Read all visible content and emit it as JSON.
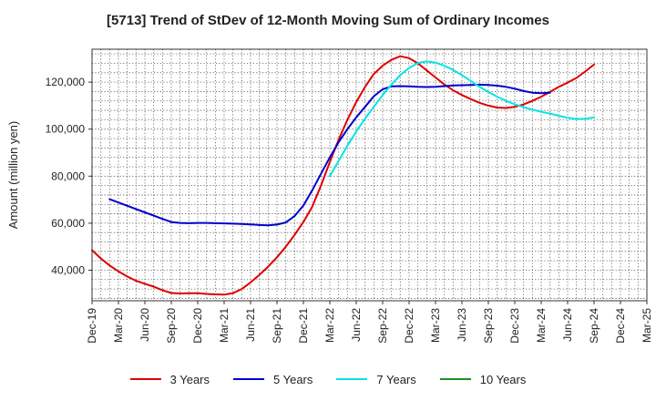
{
  "chart_data": {
    "type": "line",
    "title": "[5713]  Trend of StDev of 12-Month Moving Sum of Ordinary Incomes",
    "xlabel": "",
    "ylabel": "Amount (million yen)",
    "ylim": [
      27000,
      134000
    ],
    "y_ticks": [
      40000,
      60000,
      80000,
      100000,
      120000
    ],
    "y_tick_labels": [
      "40,000",
      "60,000",
      "80,000",
      "100,000",
      "120,000"
    ],
    "x_tick_labels": [
      "Dec-19",
      "Mar-20",
      "Jun-20",
      "Sep-20",
      "Dec-20",
      "Mar-21",
      "Jun-21",
      "Sep-21",
      "Dec-21",
      "Mar-22",
      "Jun-22",
      "Sep-22",
      "Dec-22",
      "Mar-23",
      "Jun-23",
      "Sep-23",
      "Dec-23",
      "Mar-24",
      "Jun-24",
      "Sep-24",
      "Dec-24",
      "Mar-25"
    ],
    "x_index_range": [
      0,
      63
    ],
    "grid": true,
    "legend_position": "bottom",
    "series": [
      {
        "name": "3 Years",
        "color": "#dd0000",
        "start_index": 0,
        "values": [
          48500,
          45000,
          42000,
          39500,
          37300,
          35500,
          34200,
          33000,
          31500,
          30300,
          30100,
          30200,
          30200,
          29900,
          29700,
          29600,
          30200,
          32000,
          34800,
          38000,
          41500,
          45500,
          50000,
          55000,
          60500,
          67000,
          76000,
          86000,
          95500,
          104000,
          111500,
          118000,
          123500,
          127000,
          129500,
          131000,
          130200,
          128000,
          125000,
          122000,
          119000,
          116500,
          114500,
          112800,
          111200,
          110000,
          109200,
          109000,
          109500,
          110500,
          112000,
          113800,
          115800,
          118000,
          119800,
          121800,
          124500,
          127500
        ]
      },
      {
        "name": "5 Years",
        "color": "#0000cc",
        "start_index": 2,
        "values": [
          70200,
          68800,
          67400,
          66000,
          64600,
          63200,
          61800,
          60500,
          60100,
          60000,
          60100,
          60100,
          60000,
          59900,
          59800,
          59700,
          59500,
          59200,
          59100,
          59400,
          60300,
          63000,
          67500,
          74000,
          81000,
          88000,
          94500,
          100000,
          105000,
          109500,
          114000,
          117000,
          118200,
          118300,
          118200,
          118000,
          117900,
          118000,
          118300,
          118600,
          118700,
          118800,
          118900,
          118800,
          118500,
          118000,
          117200,
          116200,
          115500,
          115300,
          115500
        ]
      },
      {
        "name": "7 Years",
        "color": "#00e5e5",
        "start_index": 27,
        "values": [
          80000,
          86500,
          93000,
          99000,
          104500,
          109500,
          114500,
          119000,
          123000,
          126000,
          128200,
          128800,
          128300,
          127000,
          125200,
          123000,
          120500,
          118000,
          115800,
          113800,
          112000,
          110600,
          109400,
          108300,
          107400,
          106600,
          105700,
          104800,
          104300,
          104400,
          105000
        ]
      },
      {
        "name": "10 Years",
        "color": "#228b22",
        "start_index": 0,
        "values": []
      }
    ]
  }
}
